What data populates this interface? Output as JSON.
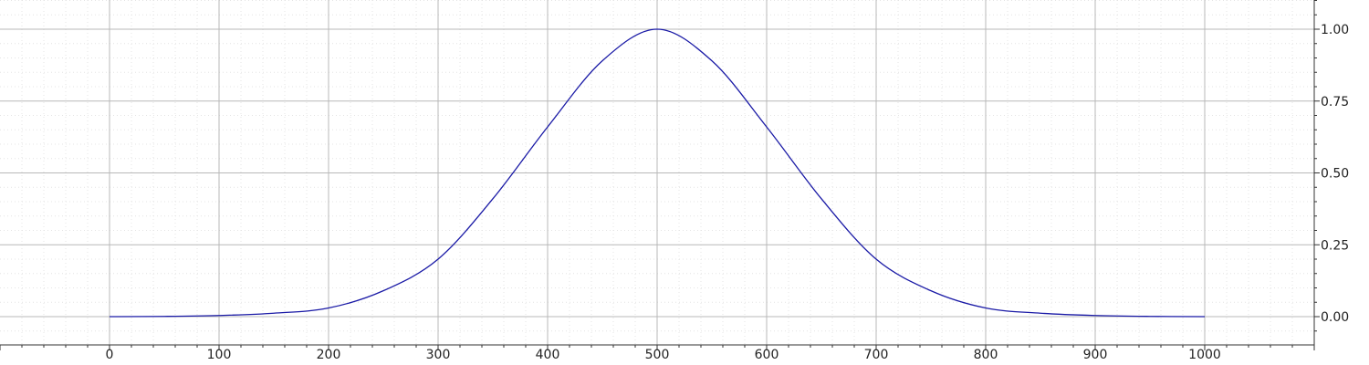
{
  "chart_data": {
    "type": "line",
    "title": "",
    "xlabel": "",
    "ylabel": "",
    "xlim": [
      -100,
      1100
    ],
    "ylim": [
      -0.1,
      1.1
    ],
    "x_ticks": [
      0,
      100,
      200,
      300,
      400,
      500,
      600,
      700,
      800,
      900,
      1000
    ],
    "y_ticks": [
      0.0,
      0.25,
      0.5,
      0.75,
      1.0
    ],
    "x_tick_labels": [
      "0",
      "100",
      "200",
      "300",
      "400",
      "500",
      "600",
      "700",
      "800",
      "900",
      "1000"
    ],
    "y_tick_labels": [
      "0.00",
      "0.25",
      "0.50",
      "0.75",
      "1.00"
    ],
    "y_axis_side": "right",
    "grid": true,
    "minor_grid": true,
    "legend": "none",
    "colors": {
      "series": "#1a1aa6",
      "major_grid": "#b8b8b8",
      "minor_grid": "#e4e4e4",
      "axis": "#333333"
    },
    "series": [
      {
        "x": [
          0,
          50,
          100,
          150,
          200,
          250,
          300,
          350,
          400,
          450,
          500,
          550,
          600,
          650,
          700,
          750,
          800,
          850,
          900,
          950,
          1000
        ],
        "y": [
          0.0,
          0.0009,
          0.004,
          0.012,
          0.03,
          0.09,
          0.2,
          0.41,
          0.66,
          0.89,
          1.0,
          0.89,
          0.66,
          0.41,
          0.2,
          0.09,
          0.03,
          0.012,
          0.004,
          0.0009,
          0.0
        ]
      }
    ]
  }
}
